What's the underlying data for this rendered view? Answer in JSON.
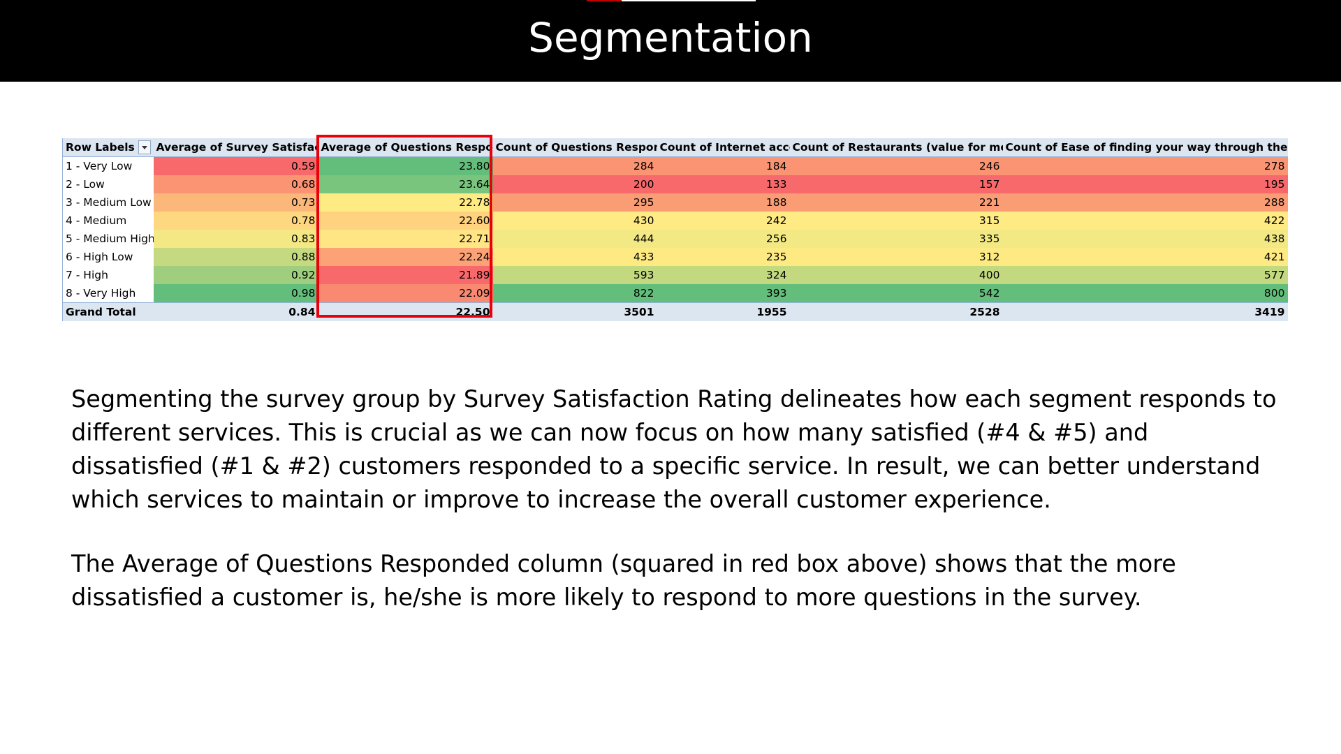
{
  "slide": {
    "title": "Segmentation"
  },
  "pivot": {
    "headers": [
      "Row Labels",
      "Average of Survey Satisfaction",
      "Average of Questions Responed",
      "Count of Questions Responed",
      "Count of Internet access",
      "Count of Restaurants (value for money)",
      "Count of Ease of finding your way through the airport"
    ],
    "rows": [
      {
        "label": "1 - Very Low",
        "cells": [
          {
            "v": "0.59",
            "bg": "#f8696b"
          },
          {
            "v": "23.80",
            "bg": "#63be7b"
          },
          {
            "v": "284",
            "bg": "#fa9473"
          },
          {
            "v": "184",
            "bg": "#fa9473"
          },
          {
            "v": "246",
            "bg": "#fa9473"
          },
          {
            "v": "278",
            "bg": "#fa9473"
          }
        ]
      },
      {
        "label": "2 - Low",
        "cells": [
          {
            "v": "0.68",
            "bg": "#fa9473"
          },
          {
            "v": "23.64",
            "bg": "#7ac57d"
          },
          {
            "v": "200",
            "bg": "#f8696b"
          },
          {
            "v": "133",
            "bg": "#f8696b"
          },
          {
            "v": "157",
            "bg": "#f8696b"
          },
          {
            "v": "195",
            "bg": "#f8696b"
          }
        ]
      },
      {
        "label": "3 - Medium Low",
        "cells": [
          {
            "v": "0.73",
            "bg": "#fcb77a"
          },
          {
            "v": "22.78",
            "bg": "#ffeb84"
          },
          {
            "v": "295",
            "bg": "#fa9d75"
          },
          {
            "v": "188",
            "bg": "#fa9d75"
          },
          {
            "v": "221",
            "bg": "#fa9d75"
          },
          {
            "v": "288",
            "bg": "#fa9d75"
          }
        ]
      },
      {
        "label": "4 - Medium",
        "cells": [
          {
            "v": "0.78",
            "bg": "#fed880"
          },
          {
            "v": "22.60",
            "bg": "#fed27f"
          },
          {
            "v": "430",
            "bg": "#ffeb84"
          },
          {
            "v": "242",
            "bg": "#ffeb84"
          },
          {
            "v": "315",
            "bg": "#ffeb84"
          },
          {
            "v": "422",
            "bg": "#ffeb84"
          }
        ]
      },
      {
        "label": "5 - Medium High",
        "cells": [
          {
            "v": "0.83",
            "bg": "#f4e884"
          },
          {
            "v": "22.71",
            "bg": "#ffe583"
          },
          {
            "v": "444",
            "bg": "#f2e884"
          },
          {
            "v": "256",
            "bg": "#f2e884"
          },
          {
            "v": "335",
            "bg": "#f2e884"
          },
          {
            "v": "438",
            "bg": "#f2e884"
          }
        ]
      },
      {
        "label": "6 - High Low",
        "cells": [
          {
            "v": "0.88",
            "bg": "#c4d980"
          },
          {
            "v": "22.24",
            "bg": "#fba276"
          },
          {
            "v": "433",
            "bg": "#feea83"
          },
          {
            "v": "235",
            "bg": "#feea83"
          },
          {
            "v": "312",
            "bg": "#feea83"
          },
          {
            "v": "421",
            "bg": "#feea83"
          }
        ]
      },
      {
        "label": "7 - High",
        "cells": [
          {
            "v": "0.92",
            "bg": "#9fcf7e"
          },
          {
            "v": "21.89",
            "bg": "#f8696b"
          },
          {
            "v": "593",
            "bg": "#c2d980"
          },
          {
            "v": "324",
            "bg": "#c2d980"
          },
          {
            "v": "400",
            "bg": "#c2d980"
          },
          {
            "v": "577",
            "bg": "#c2d980"
          }
        ]
      },
      {
        "label": "8 - Very High",
        "cells": [
          {
            "v": "0.98",
            "bg": "#63be7b"
          },
          {
            "v": "22.09",
            "bg": "#f98a71"
          },
          {
            "v": "822",
            "bg": "#63be7b"
          },
          {
            "v": "393",
            "bg": "#63be7b"
          },
          {
            "v": "542",
            "bg": "#63be7b"
          },
          {
            "v": "800",
            "bg": "#63be7b"
          }
        ]
      }
    ],
    "total": {
      "label": "Grand Total",
      "cells": [
        "0.84",
        "22.50",
        "3501",
        "1955",
        "2528",
        "3419"
      ]
    }
  },
  "highlight": {
    "color": "#e8000b",
    "column": "Average of Questions Responed"
  },
  "paragraphs": {
    "p1": "Segmenting the survey group by Survey Satisfaction Rating delineates how each segment responds to different services. This is crucial as we can now focus on how many satisfied (#4 & #5) and dissatisfied (#1 & #2) customers responded to a specific service. In result, we can better understand which services to maintain or improve to increase the overall customer experience.",
    "p2": "The Average of Questions Responded column (squared in red box above) shows that the more dissatisfied a customer is, he/she is more likely to respond to more questions in the survey."
  }
}
